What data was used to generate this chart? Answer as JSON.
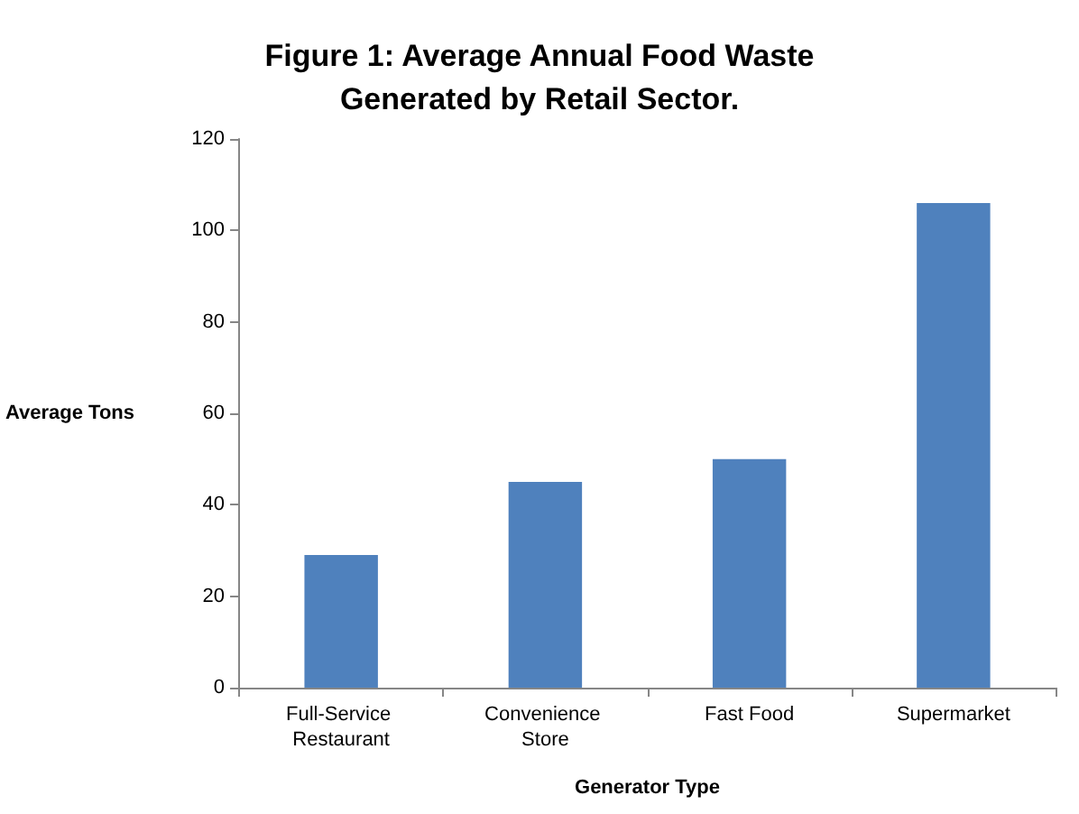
{
  "chart_data": {
    "type": "bar",
    "title": "Figure 1: Average Annual Food Waste\nGenerated by Retail Sector.",
    "xlabel": "Generator Type",
    "ylabel": "Average Tons",
    "categories": [
      "Full-Service Restaurant",
      "Convenience Store",
      "Fast Food",
      "Supermarket"
    ],
    "values": [
      29,
      45,
      50,
      106
    ],
    "color": "#4f81bd",
    "ylim": [
      0,
      120
    ],
    "yticks": [
      0,
      20,
      40,
      60,
      80,
      100,
      120
    ],
    "grid": false
  }
}
